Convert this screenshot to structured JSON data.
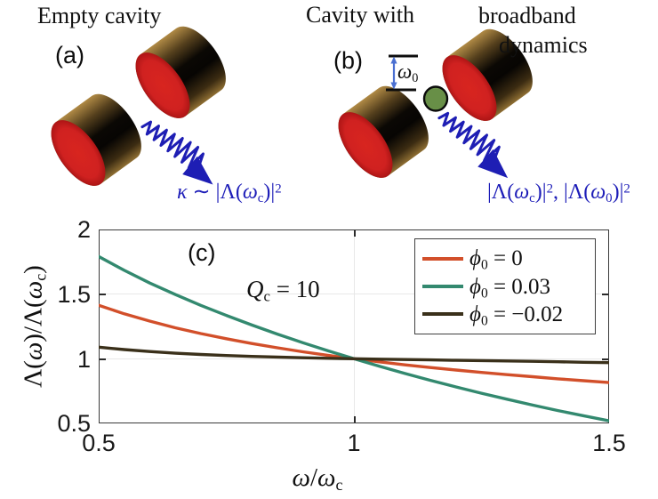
{
  "colors": {
    "label-blue": "#1d1db8",
    "arrow-blue": "#1e1eb4",
    "level-arrow-blue": "#4a6fd1",
    "atom-green": "#688f47",
    "mirror-red": "#d8251f",
    "axis-color": "#3a3a3a",
    "grid-color": "#e8e8e8",
    "text-color": "#111111"
  },
  "figure": {
    "panel_a": {
      "title": "Empty cavity",
      "label": "(a)",
      "kappa_label": [
        {
          "t": "κ",
          "m": "i"
        },
        {
          "t": " ∼ |Λ("
        },
        {
          "t": "ω",
          "m": "i"
        },
        {
          "t": "c",
          "m": "sub"
        },
        {
          "t": ")|"
        },
        {
          "t": "2",
          "m": "sup"
        }
      ]
    },
    "panel_b": {
      "title_part1": "Cavity with",
      "title_part2": "broadband",
      "title_part3": "dynamics",
      "label": "(b)",
      "omega0_label": [
        {
          "t": "ω",
          "m": "i"
        },
        {
          "t": "0",
          "m": "sub"
        }
      ],
      "lambda_label": [
        {
          "t": "|Λ("
        },
        {
          "t": "ω",
          "m": "i"
        },
        {
          "t": "c",
          "m": "sub"
        },
        {
          "t": ")|"
        },
        {
          "t": "2",
          "m": "sup"
        },
        {
          "t": ", |Λ("
        },
        {
          "t": "ω",
          "m": "i"
        },
        {
          "t": "0",
          "m": "sub"
        },
        {
          "t": ")|"
        },
        {
          "t": "2",
          "m": "sup"
        }
      ]
    },
    "panel_c": {
      "label": "(c)",
      "annotation": [
        {
          "t": "Q",
          "m": "i"
        },
        {
          "t": "c",
          "m": "sub"
        },
        {
          "t": " = 10"
        }
      ]
    }
  },
  "chart": {
    "yticks": [
      "2",
      "1.5",
      "1",
      "0.5"
    ],
    "xticks": [
      "0.5",
      "1",
      "1.5"
    ],
    "ylabel": [
      {
        "t": "Λ("
      },
      {
        "t": "ω",
        "m": "i"
      },
      {
        "t": ")/Λ("
      },
      {
        "t": "ω",
        "m": "i"
      },
      {
        "t": "c",
        "m": "sub"
      },
      {
        "t": ")"
      }
    ],
    "xlabel": [
      {
        "t": "ω",
        "m": "i"
      },
      {
        "t": "/"
      },
      {
        "t": "ω",
        "m": "i"
      },
      {
        "t": "c",
        "m": "sub"
      }
    ],
    "legend": [
      {
        "label": [
          {
            "t": "ϕ",
            "m": "i"
          },
          {
            "t": "0",
            "m": "sub"
          },
          {
            "t": " = 0"
          }
        ]
      },
      {
        "label": [
          {
            "t": "ϕ",
            "m": "i"
          },
          {
            "t": "0",
            "m": "sub"
          },
          {
            "t": " = 0.03"
          }
        ]
      },
      {
        "label": [
          {
            "t": "ϕ",
            "m": "i"
          },
          {
            "t": "0",
            "m": "sub"
          },
          {
            "t": " = −0.02"
          }
        ]
      }
    ]
  },
  "chart_data": {
    "type": "line",
    "xlabel": "ω/ω_c",
    "ylabel": "Λ(ω)/Λ(ω_c)",
    "annotation": "Q_c = 10",
    "xlim": [
      0.5,
      1.5
    ],
    "ylim": [
      0.5,
      2
    ],
    "xticks": [
      0.5,
      1,
      1.5
    ],
    "yticks": [
      0.5,
      1,
      1.5,
      2
    ],
    "grid": true,
    "legend_position": "upper right",
    "x": [
      0.5,
      0.55,
      0.6,
      0.65,
      0.7,
      0.75,
      0.8,
      0.85,
      0.9,
      0.95,
      1.0,
      1.05,
      1.1,
      1.15,
      1.2,
      1.25,
      1.3,
      1.35,
      1.4,
      1.45,
      1.5
    ],
    "series": [
      {
        "name": "ϕ_0 = 0",
        "color": "#d24f2a",
        "values": [
          1.414,
          1.348,
          1.291,
          1.24,
          1.195,
          1.155,
          1.118,
          1.085,
          1.054,
          1.026,
          1.0,
          0.976,
          0.953,
          0.932,
          0.913,
          0.894,
          0.877,
          0.861,
          0.845,
          0.83,
          0.816
        ]
      },
      {
        "name": "ϕ_0 = 0.03",
        "color": "#33896f",
        "values": [
          1.791,
          1.684,
          1.586,
          1.497,
          1.413,
          1.335,
          1.261,
          1.191,
          1.124,
          1.061,
          1.0,
          0.942,
          0.886,
          0.833,
          0.782,
          0.733,
          0.687,
          0.642,
          0.599,
          0.559,
          0.52
        ]
      },
      {
        "name": "ϕ_0 = −0.02",
        "color": "#3a301a",
        "values": [
          1.09,
          1.071,
          1.056,
          1.043,
          1.033,
          1.025,
          1.018,
          1.013,
          1.008,
          1.004,
          1.0,
          0.997,
          0.994,
          0.991,
          0.988,
          0.986,
          0.983,
          0.98,
          0.977,
          0.973,
          0.97
        ]
      }
    ]
  }
}
